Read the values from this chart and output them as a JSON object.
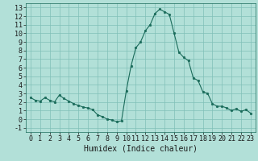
{
  "x": [
    0,
    0.5,
    1,
    1.5,
    2,
    2.5,
    3,
    3.5,
    4,
    4.5,
    5,
    5.5,
    6,
    6.5,
    7,
    7.5,
    8,
    8.5,
    9,
    9.5,
    10,
    10.5,
    11,
    11.5,
    12,
    12.5,
    13,
    13.5,
    14,
    14.5,
    15,
    15.5,
    16,
    16.5,
    17,
    17.5,
    18,
    18.5,
    19,
    19.5,
    20,
    20.5,
    21,
    21.5,
    22,
    22.5,
    23
  ],
  "y": [
    2.5,
    2.2,
    2.1,
    2.5,
    2.2,
    2.0,
    2.8,
    2.4,
    2.1,
    1.8,
    1.6,
    1.4,
    1.3,
    1.1,
    0.5,
    0.3,
    0.0,
    -0.1,
    -0.3,
    -0.2,
    3.3,
    6.2,
    8.3,
    9.0,
    10.3,
    11.0,
    12.3,
    12.8,
    12.5,
    12.2,
    10.0,
    7.8,
    7.2,
    6.8,
    4.8,
    4.5,
    3.2,
    3.0,
    1.8,
    1.5,
    1.5,
    1.3,
    1.0,
    1.2,
    0.9,
    1.1,
    0.7
  ],
  "line_color": "#1a6b5a",
  "marker_color": "#1a6b5a",
  "bg_color": "#b2e0d8",
  "grid_color": "#80c0b8",
  "xlabel": "Humidex (Indice chaleur)",
  "xlim": [
    -0.5,
    23.5
  ],
  "ylim": [
    -1.5,
    13.5
  ],
  "xticks": [
    0,
    1,
    2,
    3,
    4,
    5,
    6,
    7,
    8,
    9,
    10,
    11,
    12,
    13,
    14,
    15,
    16,
    17,
    18,
    19,
    20,
    21,
    22,
    23
  ],
  "yticks": [
    -1,
    0,
    1,
    2,
    3,
    4,
    5,
    6,
    7,
    8,
    9,
    10,
    11,
    12,
    13
  ],
  "tick_fontsize": 6,
  "xlabel_fontsize": 7,
  "marker_size": 2.0,
  "linewidth": 0.8
}
